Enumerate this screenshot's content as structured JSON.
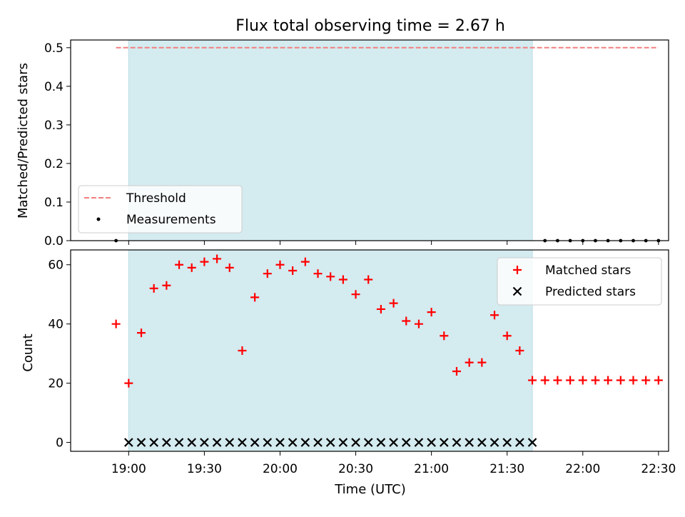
{
  "chart_data": {
    "type": "scatter",
    "title": "Flux total observing time = 2.67 h",
    "xlabel": "Time (UTC)",
    "x_tick_labels": [
      "19:00",
      "19:30",
      "20:00",
      "20:30",
      "21:00",
      "21:30",
      "22:00",
      "22:30"
    ],
    "x_ticks_minutes": [
      1140,
      1170,
      1200,
      1230,
      1260,
      1290,
      1320,
      1350
    ],
    "x_range_minutes": [
      1117,
      1354
    ],
    "shaded_interval_minutes": [
      1140,
      1300
    ],
    "shade_color": "#d4ebf0",
    "panels": [
      {
        "id": "top",
        "ylabel": "Matched/Predicted stars",
        "ylim": [
          0,
          0.52
        ],
        "y_ticks": [
          0.0,
          0.1,
          0.2,
          0.3,
          0.4,
          0.5
        ],
        "y_tick_labels": [
          "0.0",
          "0.1",
          "0.2",
          "0.3",
          "0.4",
          "0.5"
        ],
        "legend_position": "lower-left",
        "series": [
          {
            "name": "Threshold",
            "kind": "hline",
            "y": 0.5,
            "x_start": 1135,
            "x_end": 1350,
            "color": "#f08080",
            "dash": true
          },
          {
            "name": "Measurements",
            "kind": "dot",
            "color": "#000000",
            "x": [
              1135,
              1305,
              1310,
              1315,
              1320,
              1325,
              1330,
              1335,
              1340,
              1345,
              1350
            ],
            "y": [
              0,
              0,
              0,
              0,
              0,
              0,
              0,
              0,
              0,
              0,
              0
            ]
          }
        ]
      },
      {
        "id": "bottom",
        "ylabel": "Count",
        "ylim": [
          -3,
          65
        ],
        "y_ticks": [
          0,
          20,
          40,
          60
        ],
        "y_tick_labels": [
          "0",
          "20",
          "40",
          "60"
        ],
        "legend_position": "upper-right",
        "series": [
          {
            "name": "Matched stars",
            "kind": "plus",
            "color": "#ff0000",
            "x": [
              1135,
              1140,
              1145,
              1150,
              1155,
              1160,
              1165,
              1170,
              1175,
              1180,
              1185,
              1190,
              1195,
              1200,
              1205,
              1210,
              1215,
              1220,
              1225,
              1230,
              1235,
              1240,
              1245,
              1250,
              1255,
              1260,
              1265,
              1270,
              1275,
              1280,
              1285,
              1290,
              1295,
              1300,
              1305,
              1310,
              1315,
              1320,
              1325,
              1330,
              1335,
              1340,
              1345,
              1350
            ],
            "y": [
              40,
              20,
              37,
              52,
              53,
              60,
              59,
              61,
              62,
              59,
              31,
              49,
              57,
              60,
              58,
              61,
              57,
              56,
              55,
              50,
              55,
              45,
              47,
              41,
              40,
              44,
              36,
              24,
              27,
              27,
              43,
              36,
              31,
              21,
              21,
              21,
              21,
              21,
              21,
              21,
              21,
              21,
              21,
              21
            ]
          },
          {
            "name": "Predicted stars",
            "kind": "x",
            "color": "#000000",
            "x": [
              1140,
              1145,
              1150,
              1155,
              1160,
              1165,
              1170,
              1175,
              1180,
              1185,
              1190,
              1195,
              1200,
              1205,
              1210,
              1215,
              1220,
              1225,
              1230,
              1235,
              1240,
              1245,
              1250,
              1255,
              1260,
              1265,
              1270,
              1275,
              1280,
              1285,
              1290,
              1295,
              1300
            ],
            "y": [
              0,
              0,
              0,
              0,
              0,
              0,
              0,
              0,
              0,
              0,
              0,
              0,
              0,
              0,
              0,
              0,
              0,
              0,
              0,
              0,
              0,
              0,
              0,
              0,
              0,
              0,
              0,
              0,
              0,
              0,
              0,
              0,
              0
            ]
          }
        ]
      }
    ]
  }
}
